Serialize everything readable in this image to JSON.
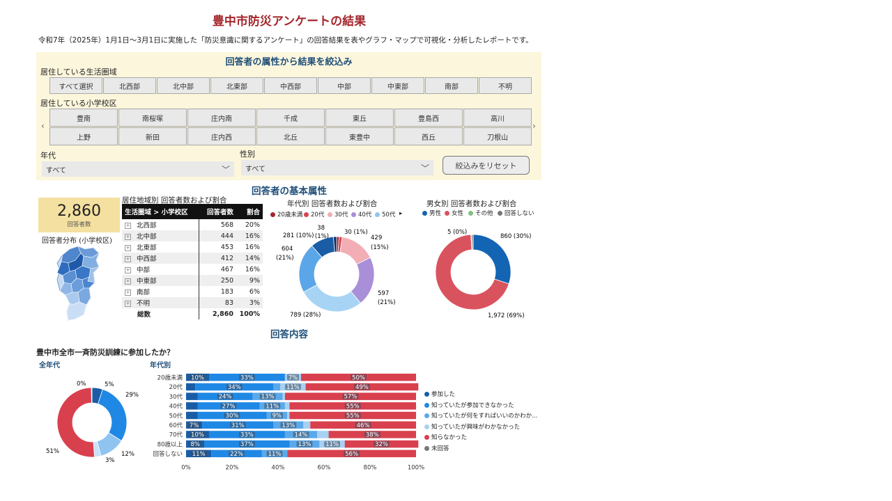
{
  "header": {
    "title": "豊中市防災アンケートの結果",
    "subtitle": "令和7年（2025年）1月1日～3月1日に実施した「防災意識に関するアンケート」の回答結果を表やグラフ・マップで可視化・分析したレポートです。"
  },
  "filters": {
    "title": "回答者の属性から結果を絞込み",
    "area_label": "居住している生活圏域",
    "areas": [
      "すべて選択",
      "北西部",
      "北中部",
      "北東部",
      "中西部",
      "中部",
      "中東部",
      "南部",
      "不明"
    ],
    "school_label": "居住している小学校区",
    "schools": [
      [
        "豊南",
        "南桜塚",
        "庄内南",
        "千成",
        "東丘",
        "豊島西",
        "高川"
      ],
      [
        "上野",
        "新田",
        "庄内西",
        "北丘",
        "東豊中",
        "西丘",
        "刀根山"
      ]
    ],
    "age_label": "年代",
    "age_value": "すべて",
    "gender_label": "性別",
    "gender_value": "すべて",
    "reset_label": "絞込みをリセット",
    "prev_arrow": "‹",
    "next_arrow": "›",
    "chevron": "﹀"
  },
  "basic": {
    "title": "回答者の基本属性",
    "kpi_value": "2,860",
    "kpi_label": "回答者数",
    "map_label": "回答者分布 (小学校区)",
    "table_title": "居住地域別 回答者数および割合",
    "table_headers": [
      "生活圏域 > 小学校区",
      "回答者数",
      "割合"
    ],
    "table_rows": [
      {
        "name": "北西部",
        "count": "568",
        "pct": "20%"
      },
      {
        "name": "北中部",
        "count": "444",
        "pct": "16%"
      },
      {
        "name": "北東部",
        "count": "453",
        "pct": "16%"
      },
      {
        "name": "中西部",
        "count": "412",
        "pct": "14%"
      },
      {
        "name": "中部",
        "count": "467",
        "pct": "16%"
      },
      {
        "name": "中東部",
        "count": "250",
        "pct": "9%"
      },
      {
        "name": "南部",
        "count": "183",
        "pct": "6%"
      },
      {
        "name": "不明",
        "count": "83",
        "pct": "3%"
      }
    ],
    "table_total": {
      "name": "総数",
      "count": "2,860",
      "pct": "100%"
    },
    "plus": "+"
  },
  "age_donut": {
    "title": "年代別 回答者数および割合",
    "legend": [
      {
        "label": "20歳未満",
        "color": "#a4262c"
      },
      {
        "label": "20代",
        "color": "#d9434f"
      },
      {
        "label": "30代",
        "color": "#f2aeb4"
      },
      {
        "label": "40代",
        "color": "#a88fd8"
      },
      {
        "label": "50代",
        "color": "#8fc6f2"
      }
    ],
    "legend_more": "▸",
    "labels": {
      "a": "38",
      "b": "(1%)",
      "c": "30 (1%)",
      "d": "281 (10%)",
      "e": "429",
      "f": "(15%)",
      "g": "604",
      "h": "(21%)",
      "i": "597",
      "j": "(21%)",
      "k": "789 (28%)"
    }
  },
  "gender_donut": {
    "title": "男女別 回答者数および割合",
    "legend": [
      {
        "label": "男性",
        "color": "#1464b4"
      },
      {
        "label": "女性",
        "color": "#d9535f"
      },
      {
        "label": "その他",
        "color": "#80c080"
      },
      {
        "label": "回答しない",
        "color": "#777777"
      }
    ],
    "labels": {
      "a": "5 (0%)",
      "b": "860 (30%)",
      "c": "1,972 (69%)"
    }
  },
  "answers": {
    "title": "回答内容",
    "question": "豊中市全市一斉防災訓練に参加したか？",
    "all_label": "全年代",
    "by_age_label": "年代別",
    "all_donut_labels": {
      "a": "0%",
      "b": "5%",
      "c": "29%",
      "d": "12%",
      "e": "3%",
      "f": "51%"
    }
  },
  "chart_data": {
    "type": "bar",
    "orientation": "horizontal",
    "stacked": "100%",
    "categories": [
      "20歳未満",
      "20代",
      "30代",
      "40代",
      "50代",
      "60代",
      "70代",
      "80歳以上",
      "回答しない"
    ],
    "series": [
      {
        "name": "参加した",
        "color": "#1a5da6",
        "values": [
          10,
          4,
          5,
          5,
          5,
          7,
          10,
          8,
          11
        ]
      },
      {
        "name": "知っていたが参加できなかった",
        "color": "#1f88e5",
        "values": [
          33,
          34,
          24,
          27,
          30,
          31,
          33,
          37,
          22
        ]
      },
      {
        "name": "知っていたが何をすればいいのかわか...",
        "color": "#5aa9ea",
        "values": [
          0,
          3,
          13,
          11,
          9,
          13,
          14,
          13,
          11
        ]
      },
      {
        "name": "知っていたが興味がわかなかった",
        "color": "#a7d0f2",
        "values": [
          7,
          11,
          1,
          2,
          1,
          3,
          5,
          11,
          0
        ]
      },
      {
        "name": "知らなかった",
        "color": "#d9404e",
        "values": [
          50,
          49,
          57,
          55,
          55,
          46,
          38,
          32,
          56
        ]
      },
      {
        "name": "未回答",
        "color": "#777777",
        "values": [
          0,
          0,
          0,
          0,
          0,
          0,
          0,
          0,
          0
        ]
      }
    ],
    "bar_labels": [
      [
        {
          "s": 0,
          "t": "10%"
        },
        {
          "s": 1,
          "t": "33%"
        },
        {
          "s": 3,
          "t": "7%"
        },
        {
          "s": 4,
          "t": "50%"
        }
      ],
      [
        {
          "s": 1,
          "t": "34%"
        },
        {
          "s": 3,
          "t": "11%"
        },
        {
          "s": 4,
          "t": "49%"
        }
      ],
      [
        {
          "s": 1,
          "t": "24%"
        },
        {
          "s": 2,
          "t": "13%"
        },
        {
          "s": 4,
          "t": "57%"
        }
      ],
      [
        {
          "s": 1,
          "t": "27%"
        },
        {
          "s": 2,
          "t": "11%"
        },
        {
          "s": 4,
          "t": "55%"
        }
      ],
      [
        {
          "s": 1,
          "t": "30%"
        },
        {
          "s": 2,
          "t": "9%"
        },
        {
          "s": 4,
          "t": "55%"
        }
      ],
      [
        {
          "s": 0,
          "t": "7%"
        },
        {
          "s": 1,
          "t": "31%"
        },
        {
          "s": 2,
          "t": "13%"
        },
        {
          "s": 4,
          "t": "46%"
        }
      ],
      [
        {
          "s": 0,
          "t": "10%"
        },
        {
          "s": 1,
          "t": "33%"
        },
        {
          "s": 2,
          "t": "14%"
        },
        {
          "s": 4,
          "t": "38%"
        }
      ],
      [
        {
          "s": 0,
          "t": "8%"
        },
        {
          "s": 1,
          "t": "37%"
        },
        {
          "s": 2,
          "t": "13%"
        },
        {
          "s": 3,
          "t": "11%"
        },
        {
          "s": 4,
          "t": "32%"
        }
      ],
      [
        {
          "s": 0,
          "t": "11%"
        },
        {
          "s": 1,
          "t": "22%"
        },
        {
          "s": 2,
          "t": "11%"
        },
        {
          "s": 4,
          "t": "56%"
        }
      ]
    ],
    "x_ticks": [
      "0%",
      "20%",
      "40%",
      "60%",
      "80%",
      "100%"
    ],
    "xlim": [
      0,
      100
    ]
  }
}
